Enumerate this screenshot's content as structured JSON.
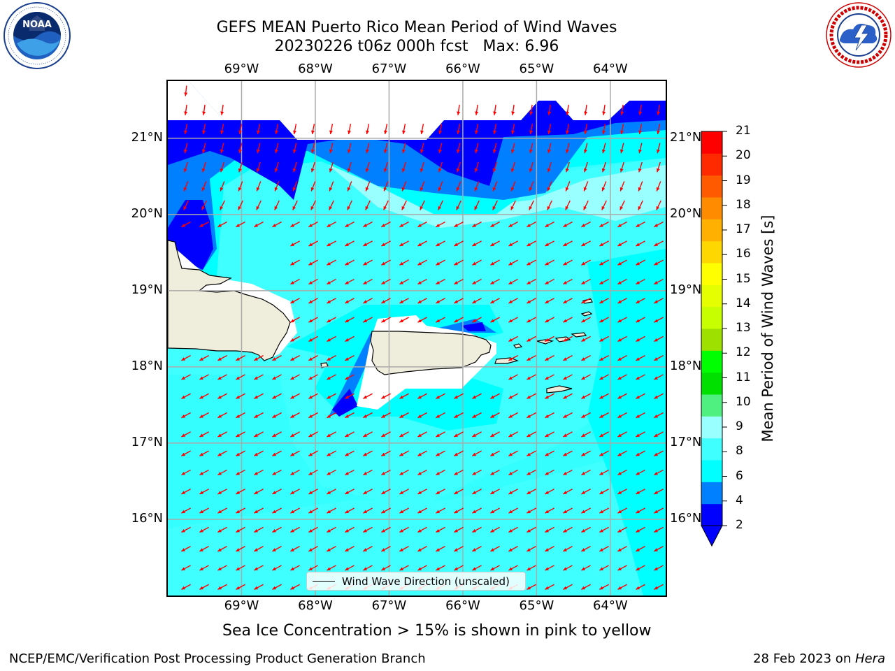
{
  "title": {
    "line1": "GEFS MEAN Puerto Rico Mean Period of Wind Waves",
    "line2": "20230226 t06z 000h fcst   Max: 6.96"
  },
  "logos": {
    "left": {
      "icon": "noaa-logo",
      "text": "NOAA",
      "ring_text": "NATIONAL OCEANIC AND ATMOSPHERIC ADMINISTRATION · U.S. DEPARTMENT OF COMMERCE"
    },
    "right": {
      "icon": "nws-logo",
      "ring_text": "NATIONAL WEATHER SERVICE"
    }
  },
  "map": {
    "lon_labels": [
      "69°W",
      "68°W",
      "67°W",
      "66°W",
      "65°W",
      "64°W"
    ],
    "lat_labels": [
      "21°N",
      "20°N",
      "19°N",
      "18°N",
      "17°N",
      "16°N"
    ],
    "lon_values": [
      -69,
      -68,
      -67,
      -66,
      -65,
      -64
    ],
    "lat_values": [
      21,
      20,
      19,
      18,
      17,
      16
    ],
    "extent": {
      "lon_min": -70,
      "lon_max": -63.25,
      "lat_min": 15.0,
      "lat_max": 21.75
    },
    "land_color": "#efeedc",
    "ocean_base_color": "#34fefe",
    "arrow_color": "#ff0000",
    "gridlines": true
  },
  "colorbar": {
    "title": "Mean Period of Wind Waves [s]",
    "ticks": [
      "2",
      "4",
      "6",
      "8",
      "9",
      "10",
      "11",
      "12",
      "13",
      "14",
      "15",
      "16",
      "17",
      "18",
      "19",
      "20",
      "21"
    ],
    "colors": [
      "#0000ff",
      "#0080ff",
      "#00ffff",
      "#40ffff",
      "#99ffff",
      "#50f080",
      "#00e000",
      "#00ff00",
      "#9ee000",
      "#c8ff00",
      "#e6ff00",
      "#ffff00",
      "#ffd700",
      "#ffb000",
      "#ff8c00",
      "#ff5a00",
      "#ff2a00",
      "#ff0000"
    ],
    "under_color": "#0000ff"
  },
  "legend": {
    "label": "Wind Wave Direction (unscaled)"
  },
  "subtitle": "Sea Ice Concentration > 15% is shown in pink to yellow",
  "footer": {
    "left": "NCEP/EMC/Verification Post Processing Product Generation Branch",
    "right_prefix": "28 Feb 2023 on ",
    "right_host": "Hera"
  }
}
